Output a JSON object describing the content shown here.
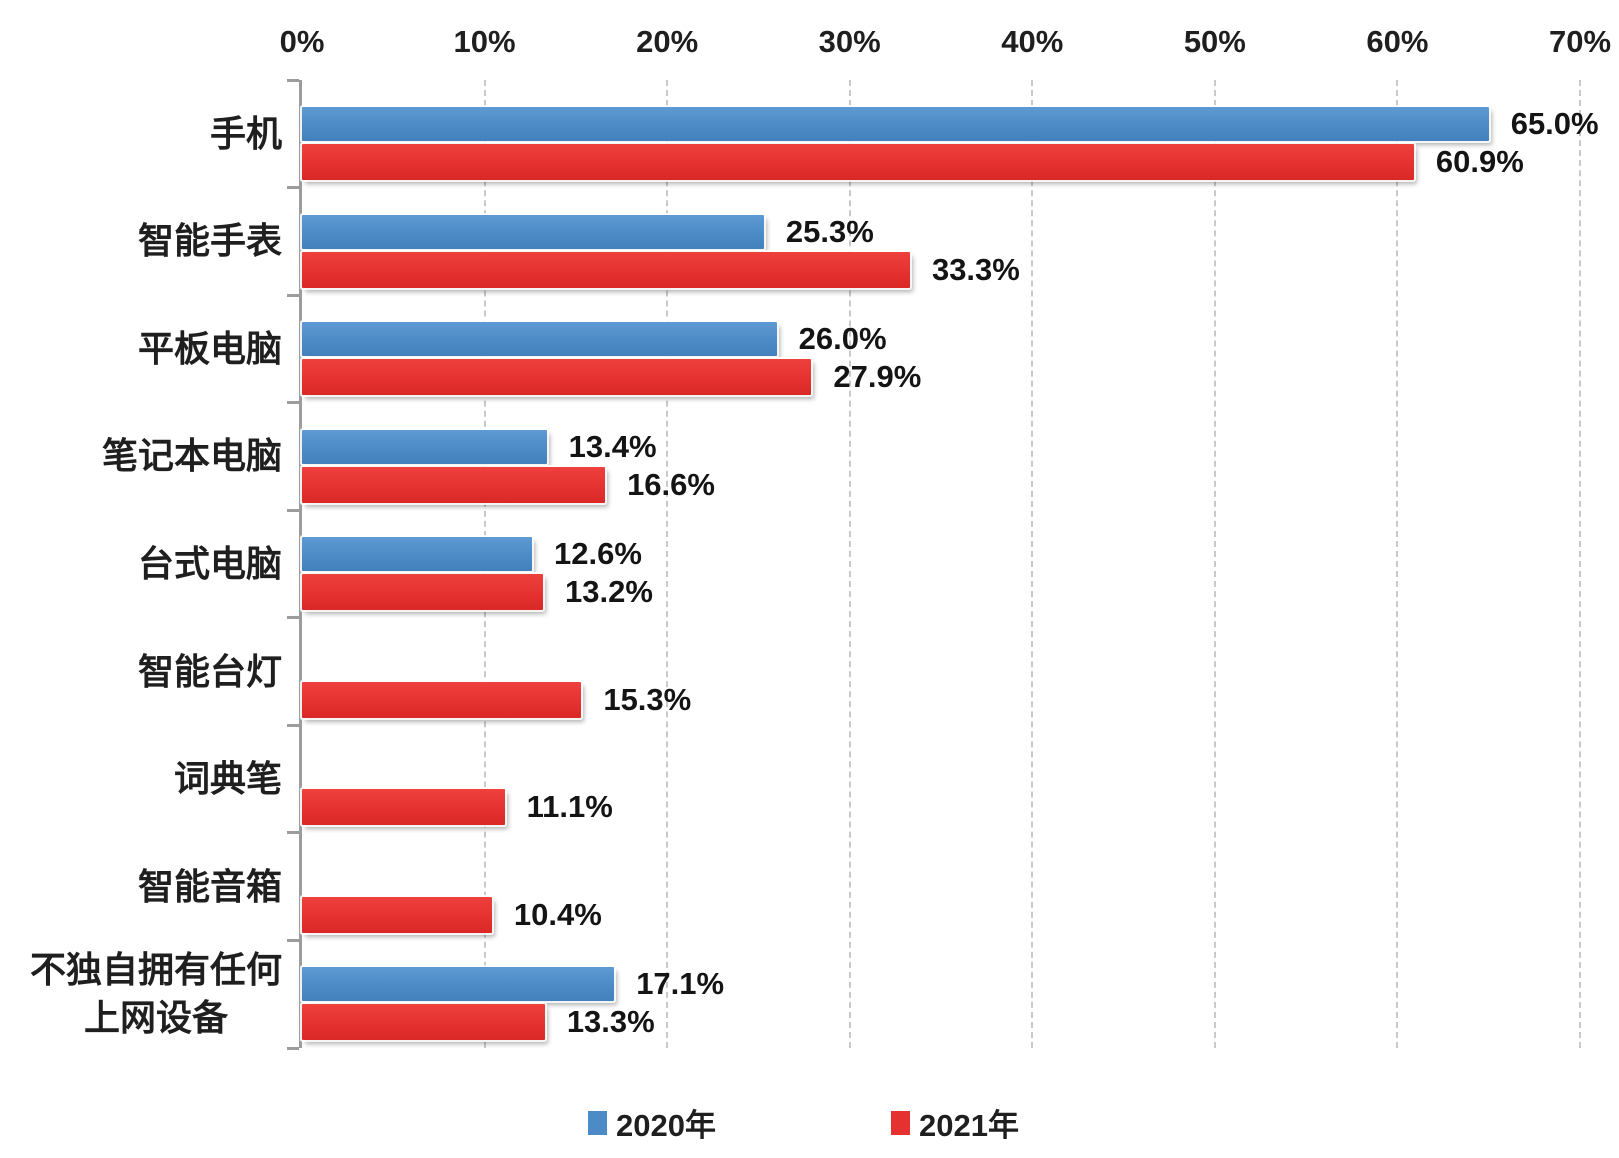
{
  "chart_data": {
    "type": "bar",
    "orientation": "horizontal-grouped",
    "title": "",
    "xlabel": "",
    "ylabel": "",
    "categories": [
      "手机",
      "智能手表",
      "平板电脑",
      "笔记本电脑",
      "台式电脑",
      "智能台灯",
      "词典笔",
      "智能音箱",
      "不独自拥有任何\n上网设备"
    ],
    "series": [
      {
        "name": "2020年",
        "color": "#4c8bc6",
        "values": [
          65.0,
          25.3,
          26.0,
          13.4,
          12.6,
          null,
          null,
          null,
          17.1
        ]
      },
      {
        "name": "2021年",
        "color": "#e53230",
        "values": [
          60.9,
          33.3,
          27.9,
          16.6,
          13.2,
          15.3,
          11.1,
          10.4,
          13.3
        ]
      }
    ],
    "value_labels": [
      "65.0%",
      "60.9%",
      "25.3%",
      "33.3%",
      "26.0%",
      "27.9%",
      "13.4%",
      "16.6%",
      "12.6%",
      "13.2%",
      "15.3%",
      "11.1%",
      "10.4%",
      "17.1%",
      "13.3%"
    ],
    "label_suffix": "%",
    "x_axis": {
      "position": "top",
      "min": 0,
      "max": 70,
      "tick_step": 10,
      "tick_labels": [
        "0%",
        "10%",
        "20%",
        "30%",
        "40%",
        "50%",
        "60%",
        "70%"
      ]
    },
    "grid": {
      "vertical_dashed": true,
      "color": "#c9c9c9"
    },
    "legend": {
      "position": "bottom",
      "entries": [
        "2020年",
        "2021年"
      ]
    }
  },
  "colors": {
    "series_2020": "#4c8bc6",
    "series_2021": "#e53230",
    "axis": "#9c9c9c",
    "grid": "#c9c9c9",
    "text": "#1f1f1f",
    "background": "#ffffff"
  }
}
